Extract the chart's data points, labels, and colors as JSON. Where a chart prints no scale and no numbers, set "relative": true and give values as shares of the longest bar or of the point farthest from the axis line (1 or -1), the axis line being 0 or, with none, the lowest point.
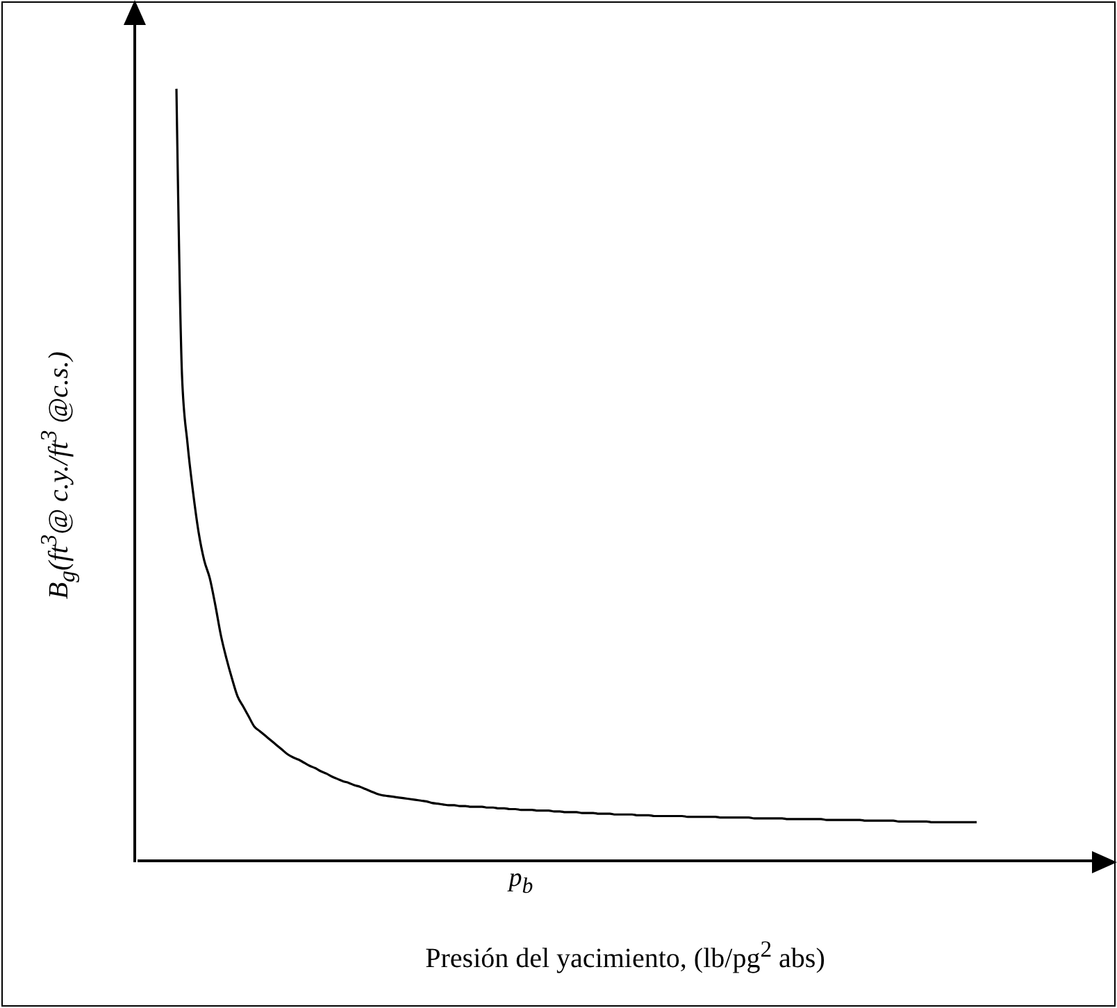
{
  "chart_data": {
    "type": "line",
    "relative": true,
    "color": "#000000",
    "xlabel": "Presión del yacimiento, (lb/pg$^{2}$ abs)",
    "ylabel": "B$_{g}$(ft$^{3}$@ c.y./ft$^{3}$ @c.s.)",
    "annotations": [
      "p$_{b}$"
    ],
    "categories": [
      null,
      null,
      null,
      null,
      null,
      null,
      null,
      null,
      null,
      null,
      null,
      null,
      null,
      null,
      null,
      null,
      null,
      null,
      null,
      null,
      null,
      null,
      null,
      null,
      null,
      null,
      null,
      null,
      null,
      null,
      null,
      null,
      null,
      null,
      null,
      null,
      null,
      null,
      null,
      null,
      null,
      null,
      null,
      null,
      null,
      null,
      null,
      null,
      null,
      null,
      null,
      null,
      null,
      null,
      null,
      null,
      null,
      null,
      null,
      null,
      null,
      null,
      null,
      null,
      null,
      null,
      null,
      null,
      null,
      null,
      null,
      null,
      null,
      null,
      null,
      null,
      null,
      null,
      null,
      null,
      null,
      null,
      null,
      null,
      null,
      null,
      null,
      null,
      null,
      null,
      null,
      null,
      null,
      null,
      null,
      null,
      null,
      null,
      null,
      null,
      null,
      null,
      null,
      null,
      null,
      null,
      null,
      null,
      null,
      null,
      null,
      null,
      null,
      null,
      null,
      null,
      null,
      null,
      null,
      null,
      null,
      null,
      null,
      null,
      null,
      null,
      null,
      null,
      null,
      null,
      null,
      null,
      null,
      null,
      null,
      null,
      null,
      null,
      null,
      null,
      null,
      null,
      null,
      null,
      null,
      null,
      null,
      null,
      null,
      null,
      null,
      null,
      null,
      null,
      null,
      null,
      null,
      null,
      null,
      null,
      null,
      null,
      null,
      null,
      null,
      null,
      null,
      null,
      null,
      null,
      null,
      null,
      null,
      null,
      null
    ],
    "values": [
      null,
      null,
      null,
      null,
      null,
      null,
      null,
      1.0,
      0.629,
      0.54,
      0.477,
      0.425,
      0.389,
      0.366,
      0.331,
      0.292,
      0.262,
      0.236,
      0.213,
      0.2,
      0.187,
      0.174,
      0.168,
      0.162,
      0.156,
      0.15,
      0.144,
      0.138,
      0.134,
      0.131,
      0.127,
      0.123,
      0.12,
      0.116,
      0.113,
      0.109,
      0.106,
      0.103,
      0.101,
      0.098,
      0.096,
      0.093,
      0.09,
      0.087,
      0.085,
      0.084,
      0.083,
      0.082,
      0.081,
      0.08,
      0.079,
      0.078,
      0.077,
      0.075,
      0.074,
      0.073,
      0.072,
      0.072,
      0.071,
      0.071,
      0.07,
      0.07,
      0.07,
      0.069,
      0.069,
      0.068,
      0.068,
      0.067,
      0.067,
      0.066,
      0.066,
      0.066,
      0.065,
      0.065,
      0.065,
      0.064,
      0.064,
      0.063,
      0.063,
      0.063,
      0.062,
      0.062,
      0.062,
      0.061,
      0.061,
      0.061,
      0.06,
      0.06,
      0.06,
      0.06,
      0.059,
      0.059,
      0.059,
      0.058,
      0.058,
      0.058,
      0.058,
      0.058,
      0.058,
      0.057,
      0.057,
      0.057,
      0.057,
      0.057,
      0.057,
      0.056,
      0.056,
      0.056,
      0.056,
      0.056,
      0.056,
      0.055,
      0.055,
      0.055,
      0.055,
      0.055,
      0.055,
      0.054,
      0.054,
      0.054,
      0.054,
      0.054,
      0.054,
      0.054,
      0.053,
      0.053,
      0.053,
      0.053,
      0.053,
      0.053,
      0.053,
      0.052,
      0.052,
      0.052,
      0.052,
      0.052,
      0.052,
      0.051,
      0.051,
      0.051,
      0.051,
      0.051,
      0.051,
      0.05,
      0.05,
      0.05,
      0.05,
      0.05,
      0.05,
      0.05,
      0.05,
      0.05,
      null,
      null,
      null,
      null,
      null,
      null,
      null,
      null,
      null,
      null,
      null,
      null,
      null,
      null,
      null,
      null,
      null,
      null,
      null,
      null,
      null,
      null,
      null
    ]
  }
}
